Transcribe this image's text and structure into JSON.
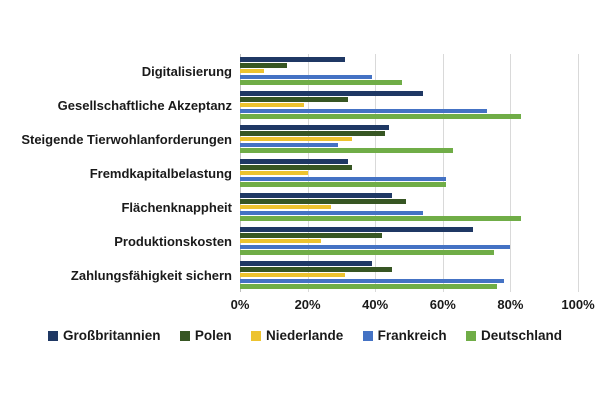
{
  "chart_data": {
    "type": "bar",
    "orientation": "horizontal",
    "title": "",
    "xlabel": "",
    "ylabel": "",
    "categories": [
      "Digitalisierung",
      "Gesellschaftliche Akzeptanz",
      "Steigende Tierwohlanforderungen",
      "Fremdkapitalbelastung",
      "Flächenknappheit",
      "Produktionskosten",
      "Zahlungsfähigkeit sichern"
    ],
    "series": [
      {
        "name": "Großbritannien",
        "color": "#1F3864",
        "values": [
          31,
          54,
          44,
          32,
          45,
          69,
          39
        ]
      },
      {
        "name": "Polen",
        "color": "#375623",
        "values": [
          14,
          32,
          43,
          33,
          49,
          42,
          45
        ]
      },
      {
        "name": "Niederlande",
        "color": "#EDC32F",
        "values": [
          7,
          19,
          33,
          20,
          27,
          24,
          31
        ]
      },
      {
        "name": "Frankreich",
        "color": "#4472C4",
        "values": [
          39,
          73,
          29,
          61,
          54,
          80,
          78
        ]
      },
      {
        "name": "Deutschland",
        "color": "#70AD47",
        "values": [
          48,
          83,
          63,
          61,
          83,
          75,
          76
        ]
      }
    ],
    "xlim": [
      0,
      100
    ],
    "x_tick_labels": [
      "0%",
      "20%",
      "40%",
      "60%",
      "80%",
      "100%"
    ],
    "x_tick_values": [
      0,
      20,
      40,
      60,
      80,
      100
    ],
    "grid": true,
    "gridline_color": "#D9D9D9",
    "legend_position": "bottom",
    "text_color": "#1A1A1A",
    "background_color": "#FFFFFF"
  }
}
